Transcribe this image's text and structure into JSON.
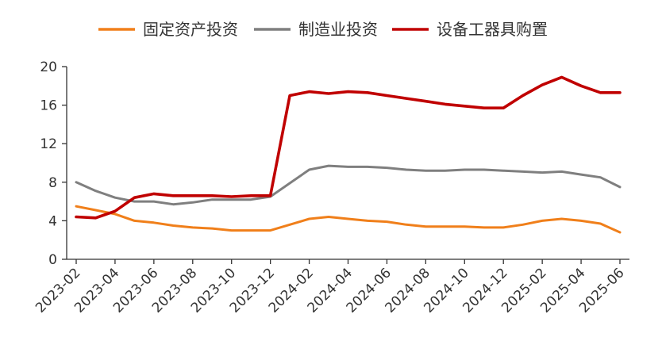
{
  "chart_data": {
    "type": "line",
    "title": "",
    "xlabel": "",
    "ylabel": "",
    "ylim": [
      0,
      20
    ],
    "yticks": [
      0,
      4,
      8,
      12,
      16,
      20
    ],
    "grid": false,
    "legend_position": "top",
    "x": [
      "2023-02",
      "2023-03",
      "2023-04",
      "2023-05",
      "2023-06",
      "2023-07",
      "2023-08",
      "2023-09",
      "2023-10",
      "2023-11",
      "2023-12",
      "2024-01",
      "2024-02",
      "2024-03",
      "2024-04",
      "2024-05",
      "2024-06",
      "2024-07",
      "2024-08",
      "2024-09",
      "2024-10",
      "2024-11",
      "2024-12",
      "2025-01",
      "2025-02",
      "2025-03",
      "2025-04",
      "2025-05",
      "2025-06"
    ],
    "xtick_labels": [
      "2023-02",
      "2023-04",
      "2023-06",
      "2023-08",
      "2023-10",
      "2023-12",
      "2024-02",
      "2024-04",
      "2024-06",
      "2024-08",
      "2024-10",
      "2024-12",
      "2025-02",
      "2025-04",
      "2025-06"
    ],
    "series": [
      {
        "name": "固定资产投资",
        "color": "#F07F1A",
        "values": [
          5.5,
          5.1,
          4.7,
          4.0,
          3.8,
          3.5,
          3.3,
          3.2,
          3.0,
          3.0,
          3.0,
          3.6,
          4.2,
          4.4,
          4.2,
          4.0,
          3.9,
          3.6,
          3.4,
          3.4,
          3.4,
          3.3,
          3.3,
          3.6,
          4.0,
          4.2,
          4.0,
          3.7,
          2.8
        ]
      },
      {
        "name": "制造业投资",
        "color": "#7F7F7F",
        "values": [
          8.0,
          7.1,
          6.4,
          6.0,
          6.0,
          5.7,
          5.9,
          6.2,
          6.2,
          6.2,
          6.5,
          7.9,
          9.3,
          9.7,
          9.6,
          9.6,
          9.5,
          9.3,
          9.2,
          9.2,
          9.3,
          9.3,
          9.2,
          9.1,
          9.0,
          9.1,
          8.8,
          8.5,
          7.5
        ]
      },
      {
        "name": "设备工器具购置",
        "color": "#C00000",
        "values": [
          4.4,
          4.3,
          5.0,
          6.4,
          6.8,
          6.6,
          6.6,
          6.6,
          6.5,
          6.6,
          6.6,
          17.0,
          17.4,
          17.2,
          17.4,
          17.3,
          17.0,
          16.7,
          16.4,
          16.1,
          15.9,
          15.7,
          15.7,
          17.0,
          18.1,
          18.9,
          18.0,
          17.3,
          17.3
        ]
      }
    ]
  }
}
